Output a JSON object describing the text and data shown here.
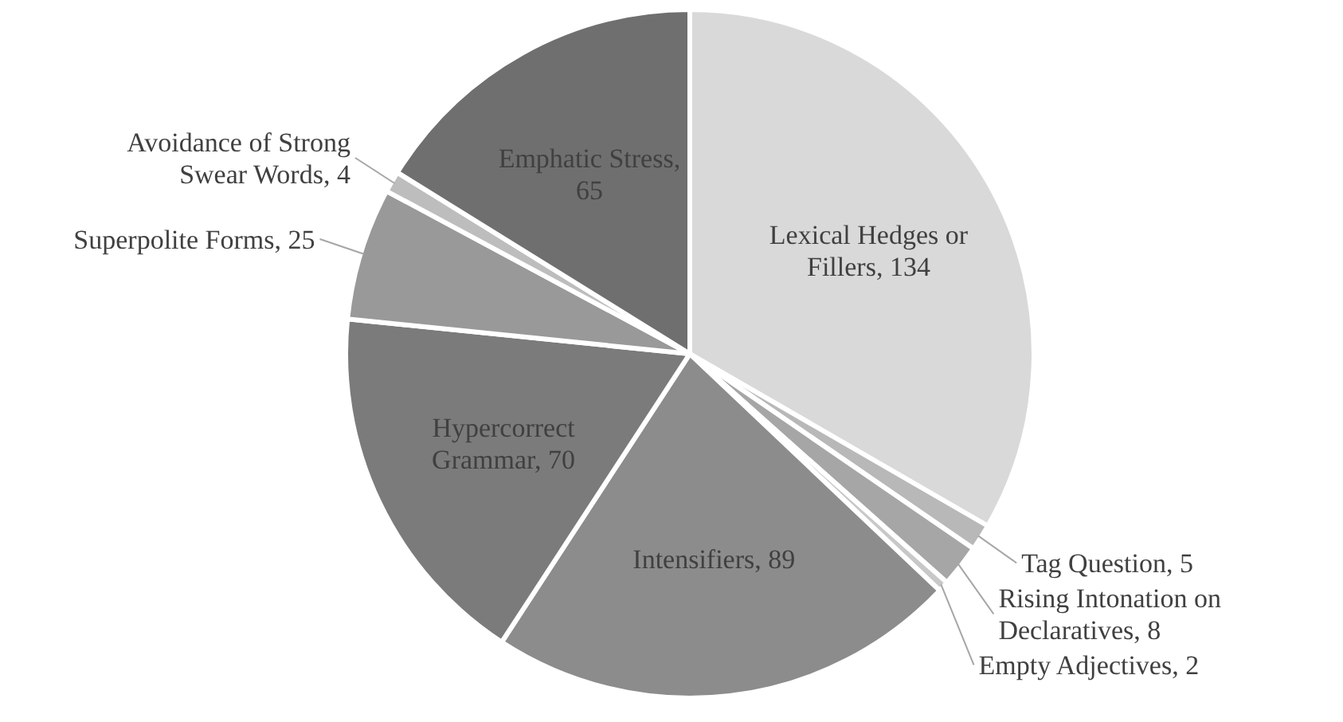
{
  "chart_data": {
    "type": "pie",
    "categories": [
      "Lexical Hedges or Fillers, 134",
      "Tag Question, 5",
      "Rising Intonation on Declaratives, 8",
      "Empty Adjectives, 2",
      "Intensifiers, 89",
      "Hypercorrect Grammar, 70",
      "Superpolite Forms, 25",
      "Avoidance of Strong Swear Words, 4",
      "Emphatic Stress, 65"
    ],
    "values": [
      134,
      5,
      8,
      2,
      89,
      70,
      25,
      4,
      65
    ],
    "colors": [
      "#d9d9d9",
      "#b8b8b8",
      "#a6a6a6",
      "#c8c8c8",
      "#8c8c8c",
      "#7b7b7b",
      "#999999",
      "#bdbdbd",
      "#6f6f6f"
    ]
  }
}
